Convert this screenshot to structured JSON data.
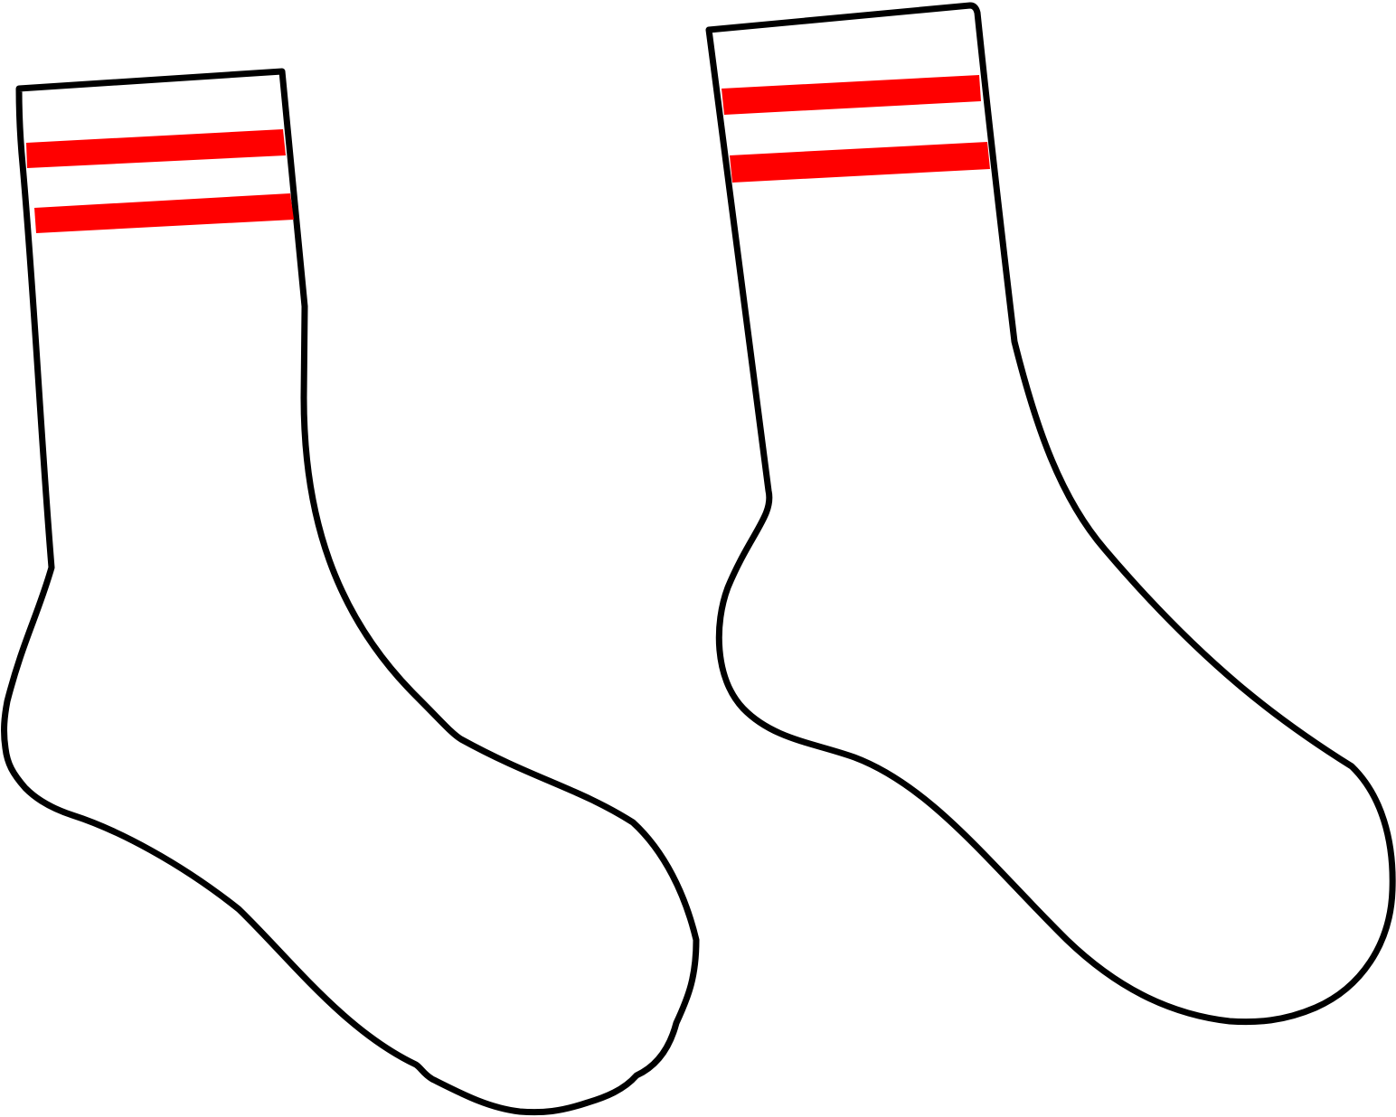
{
  "colors": {
    "background": "#ffffff",
    "outline": "#000000",
    "sock_fill": "#ffffff",
    "stripe": "#ff0000"
  },
  "illustration": {
    "subject_icons": [
      "left-sock-icon",
      "right-sock-icon"
    ],
    "stripes_per_sock": 2
  }
}
